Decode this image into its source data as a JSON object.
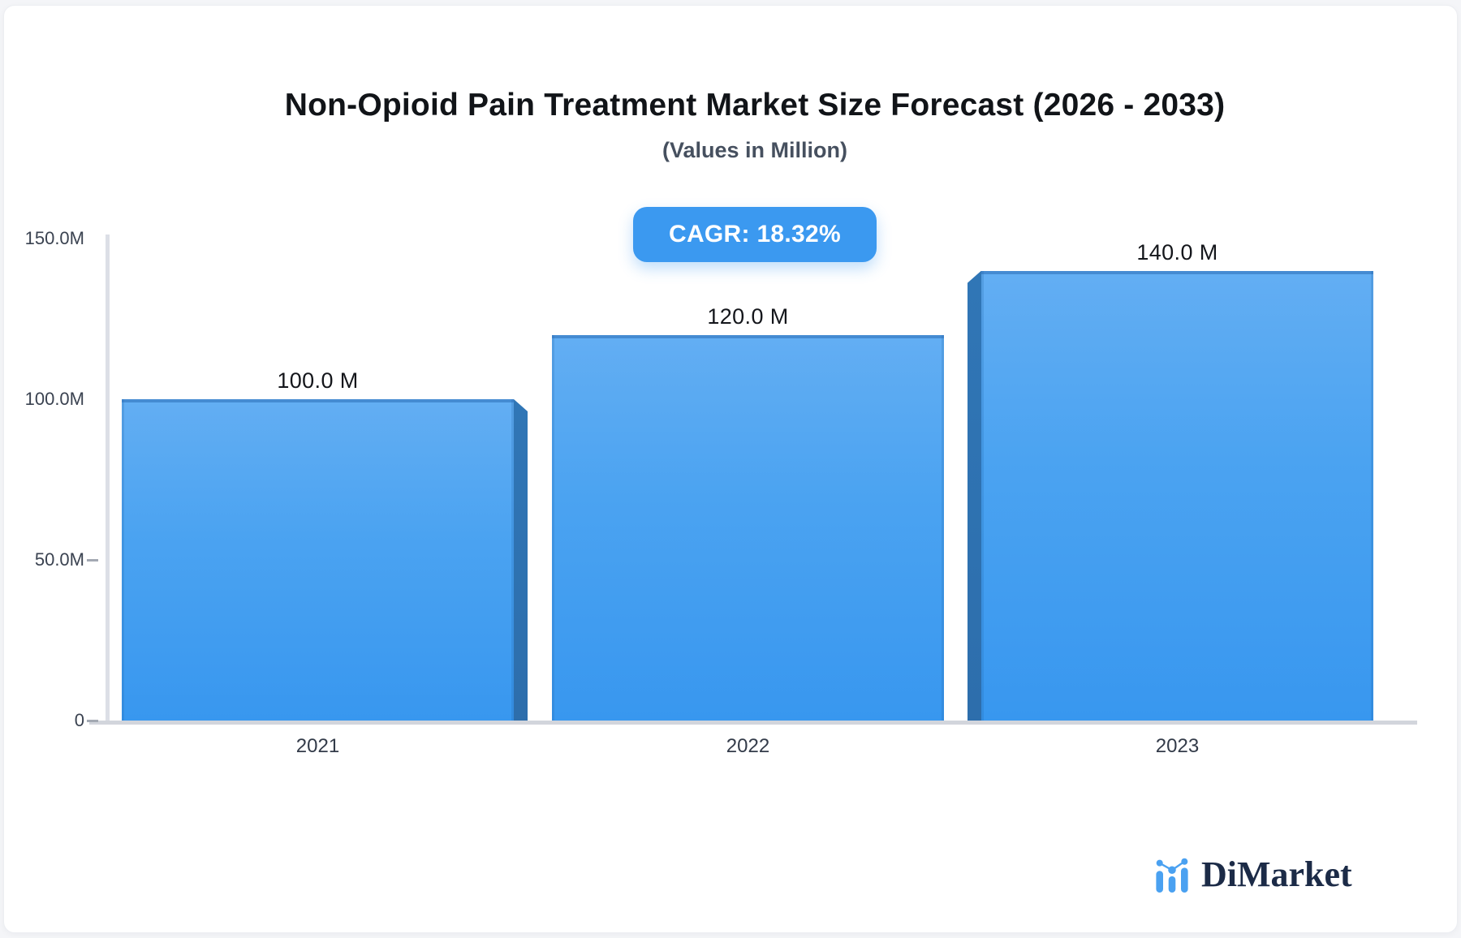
{
  "title": "Non-Opioid Pain Treatment Market Size Forecast (2026 - 2033)",
  "subtitle": "(Values in Million)",
  "badge": {
    "label": "CAGR: 18.32%"
  },
  "logo": {
    "text": "DiMarket",
    "icon": "bar-chart-logo-icon"
  },
  "colors": {
    "bar_fill_top": "#63aef3",
    "bar_fill_bottom": "#3897ef",
    "bar_bevel": "#2e71b0",
    "badge_bg": "#3b99f0",
    "axis_line": "#dcdfe6",
    "baseline": "#d2d5dc",
    "title_text": "#111418",
    "muted_text": "#3a4250",
    "logo_navy": "#1c2b47",
    "logo_blue": "#4aa1f1"
  },
  "chart_data": {
    "type": "bar",
    "title": "Non-Opioid Pain Treatment Market Size Forecast (2026 - 2033)",
    "subtitle": "(Values in Million)",
    "unit": "Million",
    "categories": [
      "2021",
      "2022",
      "2023"
    ],
    "values": [
      100.0,
      120.0,
      140.0
    ],
    "bar_labels": [
      "100.0 M",
      "120.0 M",
      "140.0 M"
    ],
    "y_ticks": [
      {
        "value": 150,
        "label": "150.0M",
        "dash": false
      },
      {
        "value": 100,
        "label": "100.0M",
        "dash": false
      },
      {
        "value": 50,
        "label": "50.0M",
        "dash": true
      },
      {
        "value": 0,
        "label": "0",
        "dash": true
      }
    ],
    "ylim": [
      0,
      150
    ],
    "cagr": "18.32%",
    "grid": false,
    "legend": false,
    "bar_style": "3d-bevel, bevel right on first bar, bevel left on last bar"
  }
}
